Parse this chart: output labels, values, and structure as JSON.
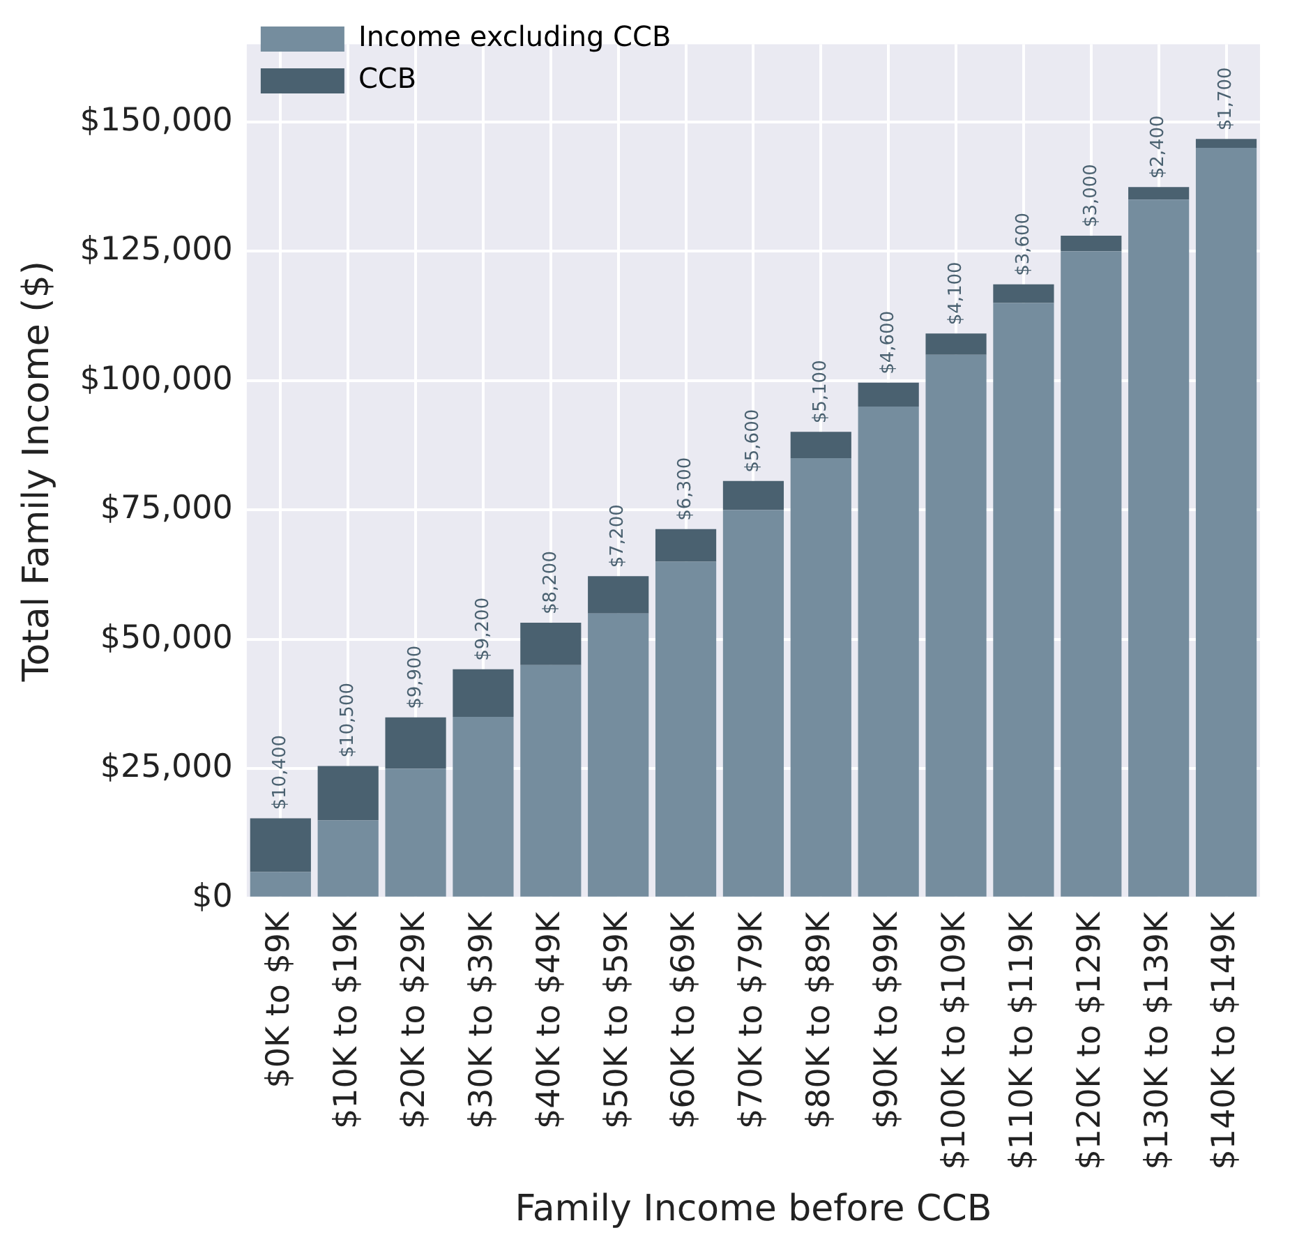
{
  "chart_data": {
    "type": "bar",
    "xlabel": "Family Income before CCB",
    "ylabel": "Total Family Income ($)",
    "categories": [
      "$0K to $9K",
      "$10K to $19K",
      "$20K to $29K",
      "$30K to $39K",
      "$40K to $49K",
      "$50K to $59K",
      "$60K to $69K",
      "$70K to $79K",
      "$80K to $89K",
      "$90K to $99K",
      "$100K to $109K",
      "$110K to $119K",
      "$120K to $129K",
      "$130K to $139K",
      "$140K to $149K"
    ],
    "series": [
      {
        "name": "Income excluding CCB",
        "color": "#758d9e",
        "values": [
          5000,
          15000,
          25000,
          35000,
          45000,
          55000,
          65000,
          75000,
          85000,
          95000,
          105000,
          115000,
          125000,
          135000,
          145000
        ]
      },
      {
        "name": "CCB",
        "color": "#4a6170",
        "values": [
          10400,
          10500,
          9900,
          9200,
          8200,
          7200,
          6300,
          5600,
          5100,
          4600,
          4100,
          3600,
          3000,
          2400,
          1700
        ],
        "value_labels": [
          "$10,400",
          "$10,500",
          "$9,900",
          "$9,200",
          "$8,200",
          "$7,200",
          "$6,300",
          "$5,600",
          "$5,100",
          "$4,600",
          "$4,100",
          "$3,600",
          "$3,000",
          "$2,400",
          "$1,700"
        ]
      }
    ],
    "stacked": true,
    "ylim": [
      0,
      165000
    ],
    "yticks": [
      {
        "value": 0,
        "label": "$0"
      },
      {
        "value": 25000,
        "label": "$25,000"
      },
      {
        "value": 50000,
        "label": "$50,000"
      },
      {
        "value": 75000,
        "label": "$75,000"
      },
      {
        "value": 100000,
        "label": "$100,000"
      },
      {
        "value": 125000,
        "label": "$125,000"
      },
      {
        "value": 150000,
        "label": "$150,000"
      }
    ],
    "grid": true,
    "legend": "top left"
  }
}
